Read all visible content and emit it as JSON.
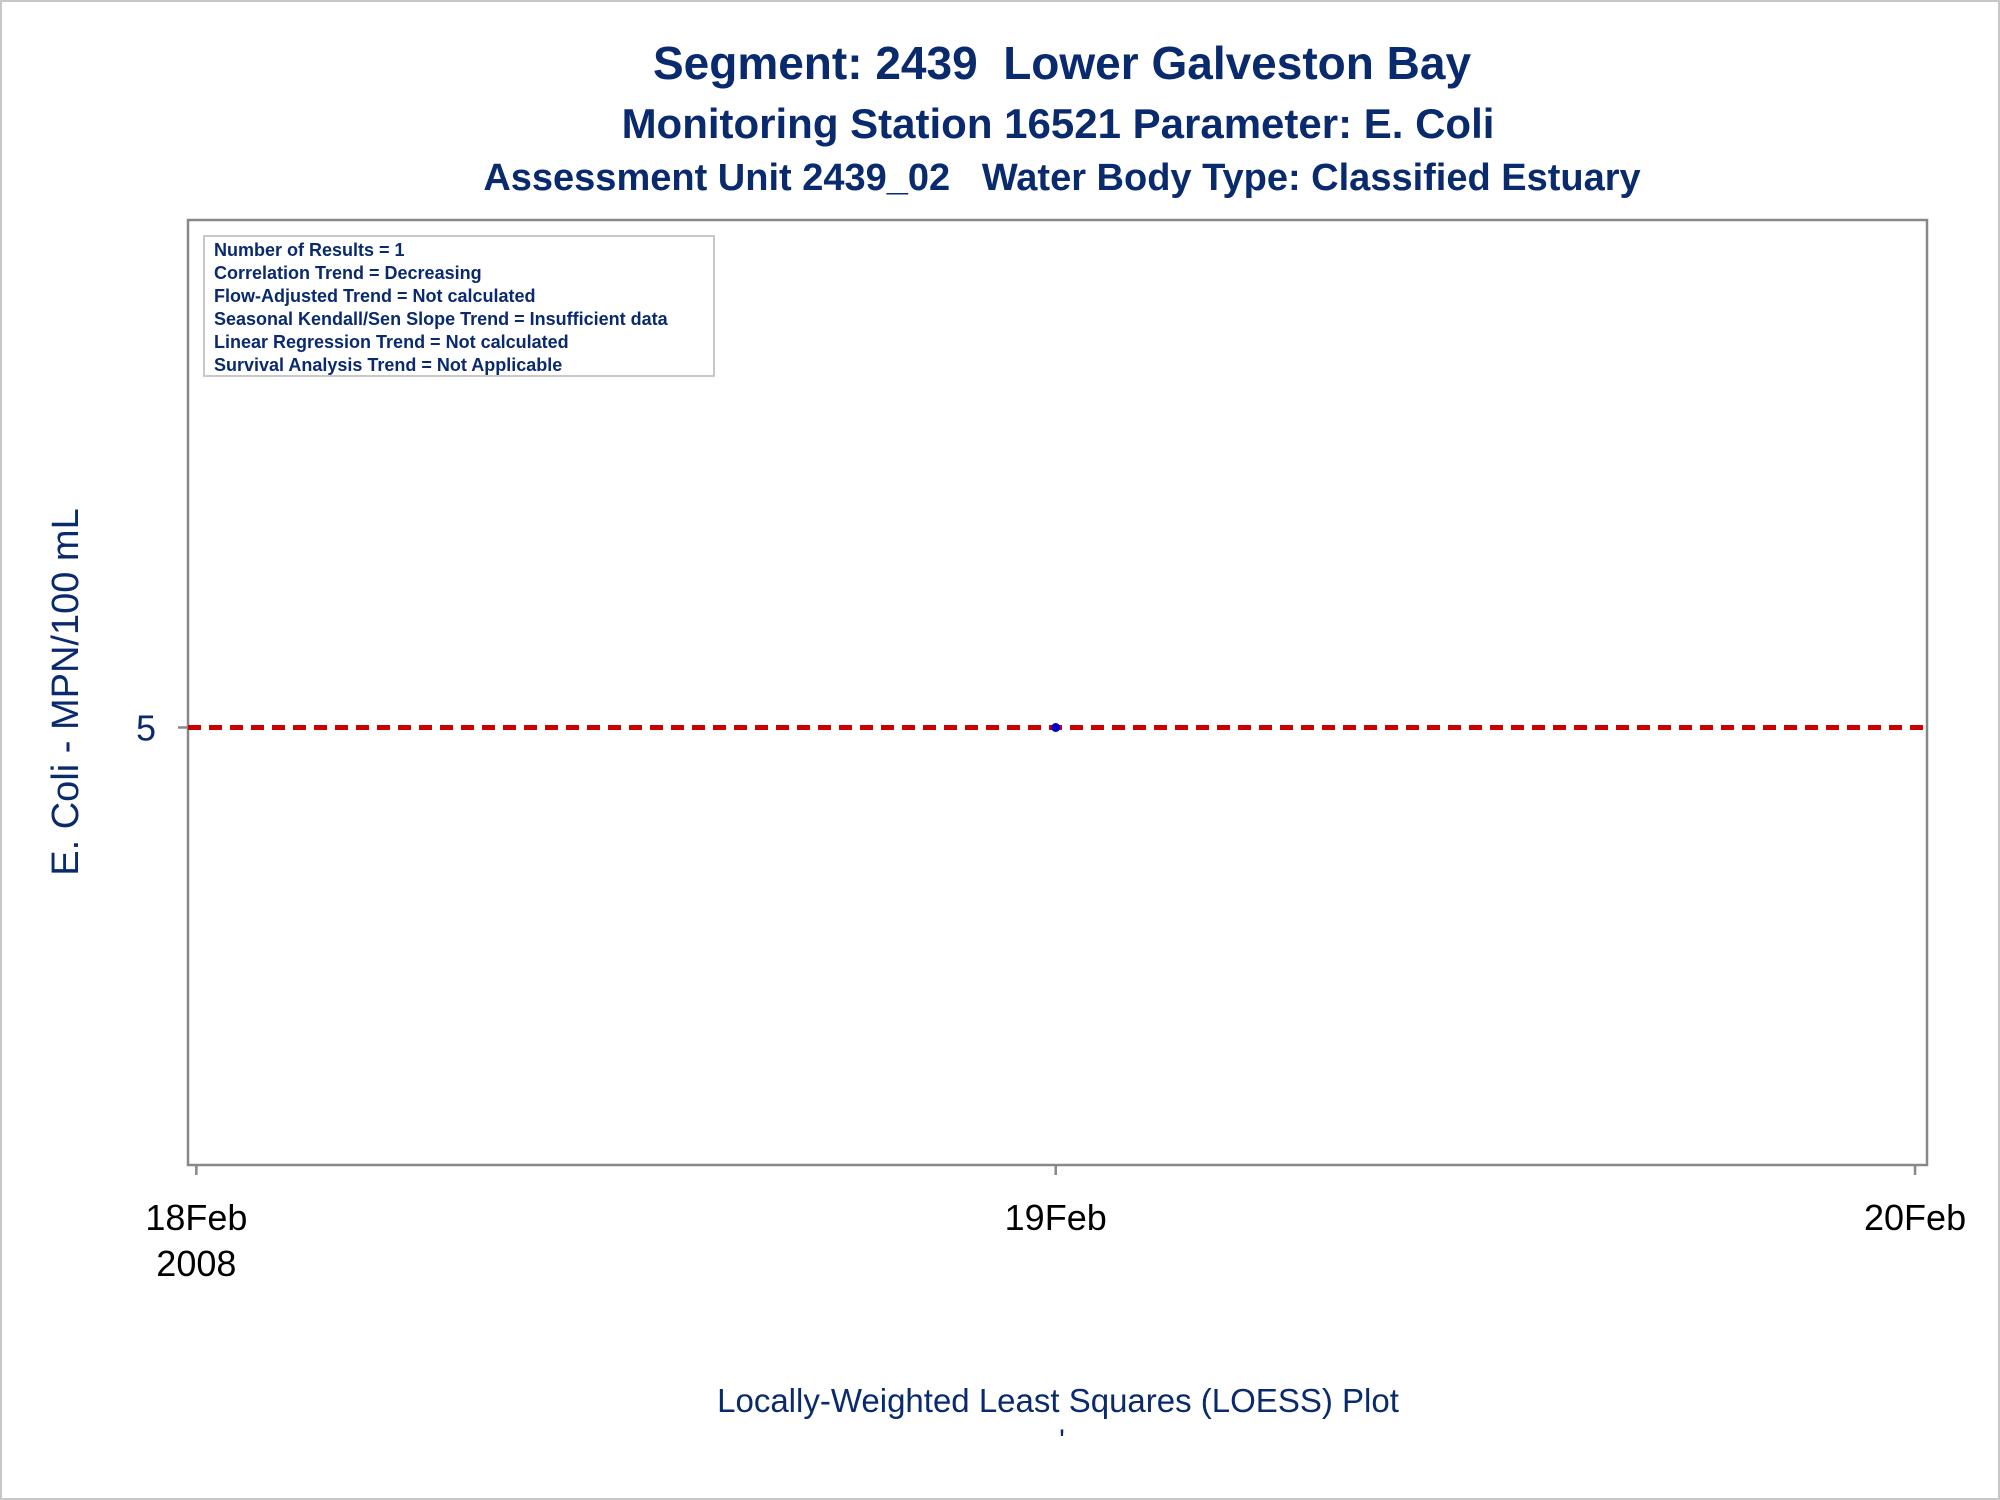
{
  "chart_data": {
    "type": "scatter",
    "title": "Segment: 2439  Lower Galveston Bay",
    "subtitle": "Monitoring Station 16521 Parameter: E. Coli",
    "subtitle2": "Assessment Unit 2439_02   Water Body Type: Classified Estuary",
    "ylabel": "E. Coli - MPN/100 mL",
    "xlabel": "Locally-Weighted Least Squares (LOESS) Plot",
    "footnote_mark": "'",
    "x_ticks": [
      {
        "date": "2008-02-18",
        "label": "18Feb",
        "sublabel": "2008"
      },
      {
        "date": "2008-02-19",
        "label": "19Feb",
        "sublabel": ""
      },
      {
        "date": "2008-02-20",
        "label": "20Feb",
        "sublabel": ""
      }
    ],
    "xlim": [
      "2008-02-17T23:46:00",
      "2008-02-20T00:20:00"
    ],
    "y_ticks": [
      5
    ],
    "ylim": [
      0,
      10.8
    ],
    "series": [
      {
        "kind": "points",
        "color": "#0000cc",
        "points": [
          {
            "x": "2008-02-19",
            "y": 5
          }
        ]
      }
    ],
    "reference_lines": [
      {
        "y": 5,
        "color": "#cc0000",
        "style": "dashed"
      }
    ],
    "info_box": [
      "Number of Results = 1",
      "Correlation Trend = Decreasing",
      "Flow-Adjusted Trend = Not calculated",
      "Seasonal Kendall/Sen Slope Trend = Insufficient data",
      "Linear Regression Trend = Not calculated",
      "Survival Analysis Trend = Not Applicable"
    ],
    "legend": "none",
    "grid": false
  },
  "colors": {
    "text": "#0a2a6e",
    "tick_text": "#000000",
    "axis": "#888888",
    "frame": "#c8c8c8"
  }
}
